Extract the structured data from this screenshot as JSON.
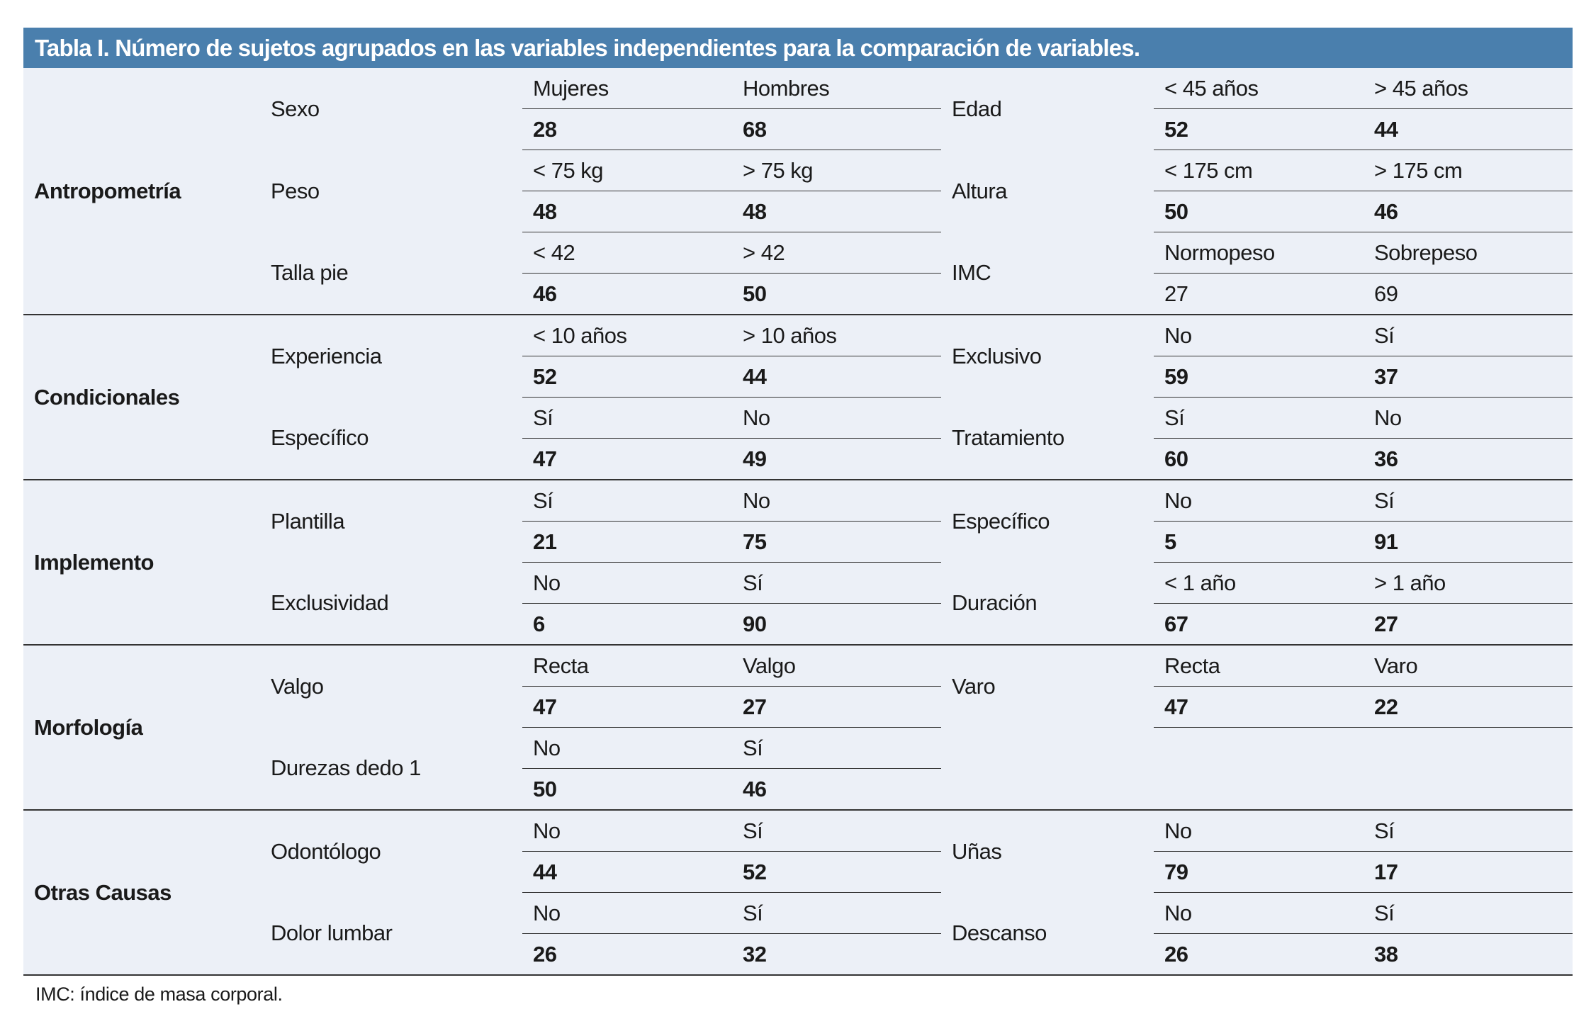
{
  "title": "Tabla I. Número de sujetos agrupados en las variables independientes para la comparación de variables.",
  "colors": {
    "header_bg": "#4a7fad",
    "table_bg": "#ecf0f7"
  },
  "groups": [
    {
      "name": "Antropometría",
      "pairs": [
        [
          {
            "var": "Sexo",
            "labels": [
              "Mujeres",
              "Hombres"
            ],
            "values": [
              "28",
              "68"
            ]
          },
          {
            "var": "Edad",
            "labels": [
              "< 45 años",
              "> 45 años"
            ],
            "values": [
              "52",
              "44"
            ]
          }
        ],
        [
          {
            "var": "Peso",
            "labels": [
              "< 75 kg",
              "> 75 kg"
            ],
            "values": [
              "48",
              "48"
            ]
          },
          {
            "var": "Altura",
            "labels": [
              "< 175 cm",
              "> 175 cm"
            ],
            "values": [
              "50",
              "46"
            ]
          }
        ],
        [
          {
            "var": "Talla pie",
            "labels": [
              "< 42",
              "> 42"
            ],
            "values": [
              "46",
              "50"
            ]
          },
          {
            "var": "IMC",
            "labels": [
              "Normopeso",
              "Sobrepeso"
            ],
            "values": [
              "27",
              "69"
            ],
            "bold": false
          }
        ]
      ]
    },
    {
      "name": "Condicionales",
      "pairs": [
        [
          {
            "var": "Experiencia",
            "labels": [
              "< 10 años",
              "> 10 años"
            ],
            "values": [
              "52",
              "44"
            ]
          },
          {
            "var": "Exclusivo",
            "labels": [
              "No",
              "Sí"
            ],
            "values": [
              "59",
              "37"
            ]
          }
        ],
        [
          {
            "var": "Específico",
            "labels": [
              "Sí",
              "No"
            ],
            "values": [
              "47",
              "49"
            ]
          },
          {
            "var": "Tratamiento",
            "labels": [
              "Sí",
              "No"
            ],
            "values": [
              "60",
              "36"
            ]
          }
        ]
      ]
    },
    {
      "name": "Implemento",
      "pairs": [
        [
          {
            "var": "Plantilla",
            "labels": [
              "Sí",
              "No"
            ],
            "values": [
              "21",
              "75"
            ]
          },
          {
            "var": "Específico",
            "labels": [
              "No",
              "Sí"
            ],
            "values": [
              "5",
              "91"
            ]
          }
        ],
        [
          {
            "var": "Exclusividad",
            "labels": [
              "No",
              "Sí"
            ],
            "values": [
              "6",
              "90"
            ]
          },
          {
            "var": "Duración",
            "labels": [
              "< 1 año",
              "> 1 año"
            ],
            "values": [
              "67",
              "27"
            ]
          }
        ]
      ]
    },
    {
      "name": "Morfología",
      "pairs": [
        [
          {
            "var": "Valgo",
            "labels": [
              "Recta",
              "Valgo"
            ],
            "values": [
              "47",
              "27"
            ]
          },
          {
            "var": "Varo",
            "labels": [
              "Recta",
              "Varo"
            ],
            "values": [
              "47",
              "22"
            ]
          }
        ],
        [
          {
            "var": "Durezas dedo 1",
            "labels": [
              "No",
              "Sí"
            ],
            "values": [
              "50",
              "46"
            ]
          },
          null
        ]
      ]
    },
    {
      "name": "Otras Causas",
      "pairs": [
        [
          {
            "var": "Odontólogo",
            "labels": [
              "No",
              "Sí"
            ],
            "values": [
              "44",
              "52"
            ]
          },
          {
            "var": "Uñas",
            "labels": [
              "No",
              "Sí"
            ],
            "values": [
              "79",
              "17"
            ]
          }
        ],
        [
          {
            "var": "Dolor lumbar",
            "labels": [
              "No",
              "Sí"
            ],
            "values": [
              "26",
              "32"
            ]
          },
          {
            "var": "Descanso",
            "labels": [
              "No",
              "Sí"
            ],
            "values": [
              "26",
              "38"
            ]
          }
        ]
      ]
    }
  ],
  "footnote": "IMC: índice de masa corporal."
}
